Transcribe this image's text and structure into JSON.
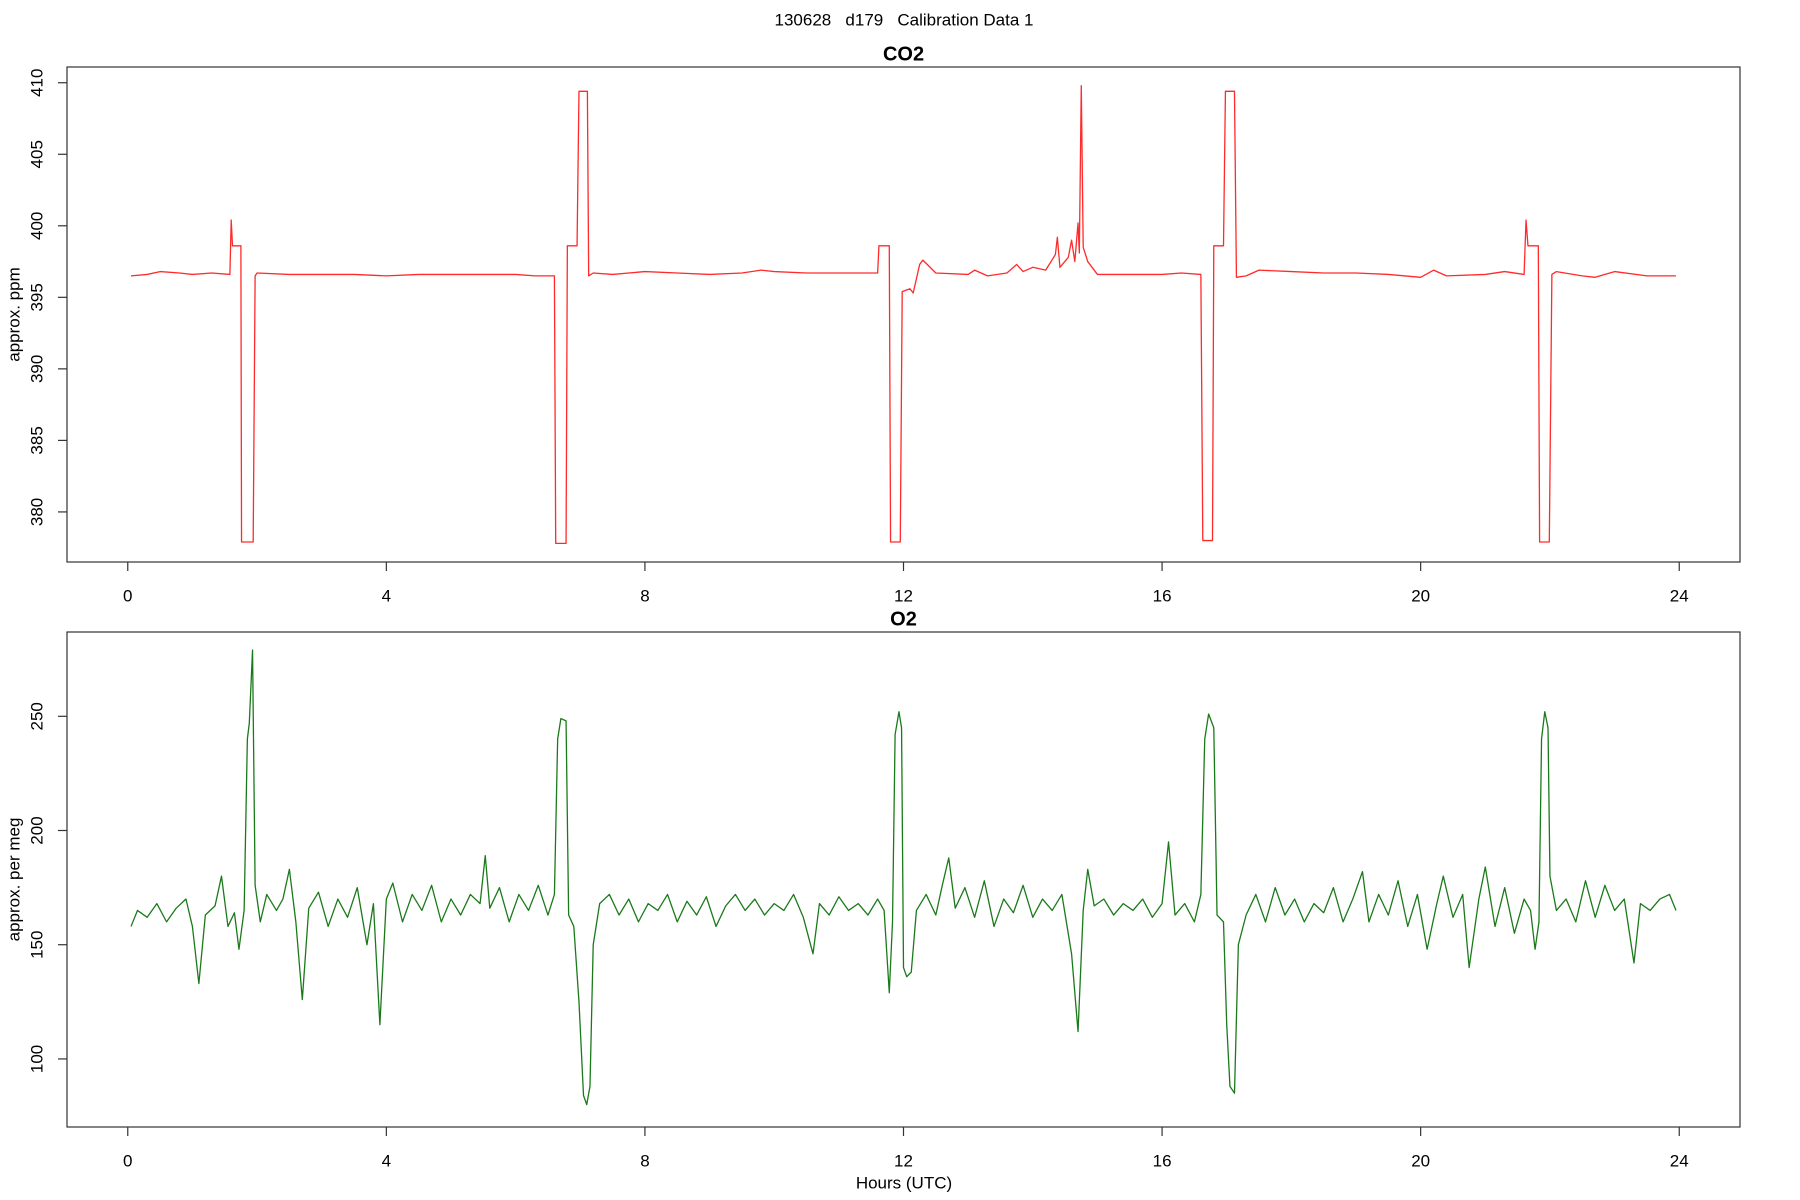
{
  "title": "130628   d179   Calibration Data 1",
  "chart_data": [
    {
      "type": "line",
      "title": "CO2",
      "ylabel": "approx. ppm",
      "color": "#ff2a2a",
      "xlim": [
        -0.94,
        24.94
      ],
      "xticks": [
        0,
        4,
        8,
        12,
        16,
        20,
        24
      ],
      "ylim": [
        376.5,
        411.1
      ],
      "yticks": [
        380,
        385,
        390,
        395,
        400,
        405,
        410
      ],
      "x": [
        0.05,
        0.3,
        0.5,
        0.8,
        1.0,
        1.3,
        1.58,
        1.6,
        1.62,
        1.75,
        1.76,
        1.94,
        1.97,
        2.0,
        2.5,
        3.0,
        3.5,
        4.0,
        4.5,
        5.0,
        5.5,
        6.0,
        6.3,
        6.6,
        6.62,
        6.78,
        6.8,
        6.95,
        6.98,
        7.11,
        7.13,
        7.2,
        7.5,
        8.0,
        8.5,
        9.0,
        9.5,
        9.8,
        10.0,
        10.5,
        11.0,
        11.6,
        11.62,
        11.78,
        11.8,
        11.95,
        11.98,
        12.1,
        12.15,
        12.25,
        12.3,
        12.5,
        13.0,
        13.1,
        13.3,
        13.6,
        13.75,
        13.85,
        14.0,
        14.2,
        14.35,
        14.38,
        14.42,
        14.55,
        14.6,
        14.65,
        14.7,
        14.72,
        14.75,
        14.78,
        14.85,
        15.0,
        15.5,
        16.0,
        16.3,
        16.6,
        16.63,
        16.78,
        16.8,
        16.95,
        16.98,
        17.12,
        17.15,
        17.3,
        17.5,
        18.0,
        18.5,
        19.0,
        19.5,
        20.0,
        20.2,
        20.4,
        21.0,
        21.3,
        21.6,
        21.63,
        21.66,
        21.82,
        21.84,
        21.99,
        22.03,
        22.1,
        22.5,
        22.7,
        23.0,
        23.5,
        23.95
      ],
      "values": [
        396.5,
        396.6,
        396.8,
        396.7,
        396.6,
        396.7,
        396.6,
        400.4,
        398.6,
        398.6,
        377.9,
        377.9,
        396.5,
        396.7,
        396.6,
        396.6,
        396.6,
        396.5,
        396.6,
        396.6,
        396.6,
        396.6,
        396.5,
        396.5,
        377.8,
        377.8,
        398.6,
        398.6,
        409.4,
        409.4,
        396.5,
        396.7,
        396.6,
        396.8,
        396.7,
        396.6,
        396.7,
        396.9,
        396.8,
        396.7,
        396.7,
        396.7,
        398.6,
        398.6,
        377.9,
        377.9,
        395.4,
        395.6,
        395.3,
        397.3,
        397.6,
        396.7,
        396.6,
        396.9,
        396.5,
        396.7,
        397.3,
        396.8,
        397.1,
        396.9,
        398.0,
        399.2,
        397.1,
        397.8,
        399.0,
        397.5,
        400.2,
        398.1,
        409.8,
        398.5,
        397.5,
        396.6,
        396.6,
        396.6,
        396.7,
        396.6,
        378.0,
        378.0,
        398.6,
        398.6,
        409.4,
        409.4,
        396.4,
        396.5,
        396.9,
        396.8,
        396.7,
        396.7,
        396.6,
        396.4,
        396.9,
        396.5,
        396.6,
        396.8,
        396.6,
        400.4,
        398.6,
        398.6,
        377.9,
        377.9,
        396.6,
        396.8,
        396.5,
        396.4,
        396.8,
        396.5,
        396.5
      ]
    },
    {
      "type": "line",
      "title": "O2",
      "ylabel": "approx. per meg",
      "xlabel": "Hours (UTC)",
      "color": "#1a7a1a",
      "xlim": [
        -0.94,
        24.94
      ],
      "xticks": [
        0,
        4,
        8,
        12,
        16,
        20,
        24
      ],
      "ylim": [
        70.2,
        286.9
      ],
      "yticks": [
        100,
        150,
        200,
        250
      ],
      "x": [
        0.05,
        0.15,
        0.3,
        0.45,
        0.6,
        0.75,
        0.9,
        1.0,
        1.1,
        1.2,
        1.35,
        1.45,
        1.55,
        1.65,
        1.72,
        1.8,
        1.85,
        1.88,
        1.93,
        1.97,
        2.05,
        2.15,
        2.3,
        2.4,
        2.5,
        2.6,
        2.7,
        2.8,
        2.95,
        3.1,
        3.25,
        3.4,
        3.55,
        3.7,
        3.8,
        3.9,
        4.0,
        4.1,
        4.25,
        4.4,
        4.55,
        4.7,
        4.85,
        5.0,
        5.15,
        5.3,
        5.45,
        5.53,
        5.6,
        5.75,
        5.9,
        6.05,
        6.2,
        6.35,
        6.5,
        6.6,
        6.65,
        6.7,
        6.78,
        6.82,
        6.9,
        6.98,
        7.05,
        7.1,
        7.15,
        7.2,
        7.3,
        7.45,
        7.6,
        7.75,
        7.9,
        8.05,
        8.2,
        8.35,
        8.5,
        8.65,
        8.8,
        8.95,
        9.1,
        9.25,
        9.4,
        9.55,
        9.7,
        9.85,
        10.0,
        10.15,
        10.3,
        10.45,
        10.6,
        10.7,
        10.85,
        11.0,
        11.15,
        11.3,
        11.45,
        11.6,
        11.7,
        11.78,
        11.83,
        11.87,
        11.93,
        11.97,
        12.0,
        12.05,
        12.12,
        12.2,
        12.35,
        12.5,
        12.6,
        12.7,
        12.8,
        12.95,
        13.1,
        13.25,
        13.4,
        13.55,
        13.7,
        13.85,
        14.0,
        14.15,
        14.3,
        14.45,
        14.6,
        14.7,
        14.78,
        14.85,
        14.95,
        15.1,
        15.25,
        15.4,
        15.55,
        15.7,
        15.85,
        16.0,
        16.1,
        16.2,
        16.35,
        16.5,
        16.6,
        16.66,
        16.72,
        16.8,
        16.85,
        16.95,
        17.0,
        17.05,
        17.12,
        17.18,
        17.3,
        17.45,
        17.6,
        17.75,
        17.9,
        18.05,
        18.2,
        18.35,
        18.5,
        18.65,
        18.8,
        18.95,
        19.1,
        19.2,
        19.35,
        19.5,
        19.65,
        19.8,
        19.95,
        20.1,
        20.25,
        20.35,
        20.5,
        20.65,
        20.75,
        20.9,
        21.0,
        21.15,
        21.3,
        21.45,
        21.6,
        21.7,
        21.77,
        21.83,
        21.87,
        21.92,
        21.97,
        22.0,
        22.1,
        22.25,
        22.4,
        22.55,
        22.7,
        22.85,
        23.0,
        23.15,
        23.3,
        23.4,
        23.55,
        23.7,
        23.85,
        23.95
      ],
      "values": [
        158,
        165,
        162,
        168,
        160,
        166,
        170,
        158,
        133,
        163,
        167,
        180,
        158,
        164,
        148,
        165,
        240,
        247,
        279,
        176,
        160,
        172,
        165,
        170,
        183,
        160,
        126,
        166,
        173,
        158,
        170,
        162,
        175,
        150,
        168,
        115,
        170,
        177,
        160,
        172,
        165,
        176,
        160,
        170,
        163,
        172,
        168,
        189,
        166,
        175,
        160,
        172,
        165,
        176,
        163,
        172,
        240,
        249,
        248,
        163,
        158,
        125,
        84,
        80,
        88,
        150,
        168,
        172,
        163,
        170,
        160,
        168,
        165,
        172,
        160,
        169,
        163,
        171,
        158,
        167,
        172,
        165,
        170,
        163,
        168,
        165,
        172,
        162,
        146,
        168,
        163,
        171,
        165,
        168,
        163,
        170,
        165,
        129,
        160,
        242,
        252,
        245,
        140,
        136,
        138,
        165,
        172,
        163,
        176,
        188,
        166,
        175,
        162,
        178,
        158,
        170,
        164,
        176,
        162,
        170,
        165,
        172,
        146,
        112,
        165,
        183,
        167,
        170,
        163,
        168,
        165,
        170,
        162,
        168,
        195,
        163,
        168,
        160,
        172,
        240,
        251,
        245,
        163,
        160,
        115,
        88,
        85,
        150,
        163,
        172,
        160,
        175,
        163,
        170,
        160,
        168,
        164,
        175,
        160,
        170,
        182,
        160,
        172,
        163,
        178,
        158,
        172,
        148,
        168,
        180,
        162,
        172,
        140,
        170,
        184,
        158,
        175,
        155,
        170,
        165,
        148,
        160,
        240,
        252,
        245,
        180,
        165,
        170,
        160,
        178,
        162,
        176,
        165,
        170,
        142,
        168,
        165,
        170,
        172,
        165
      ]
    }
  ]
}
